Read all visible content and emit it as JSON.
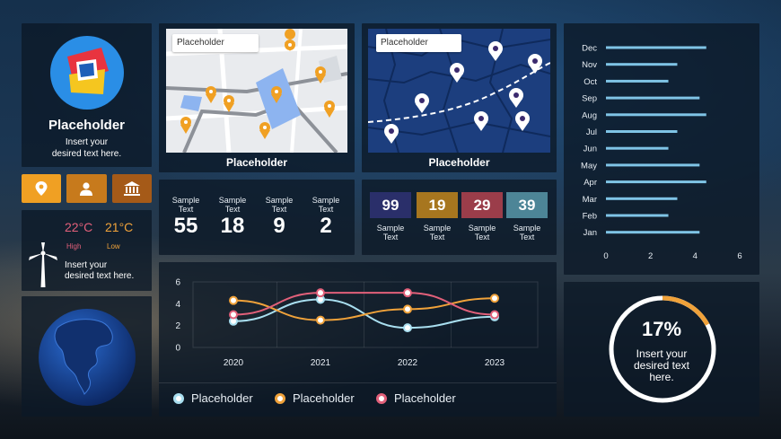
{
  "profile": {
    "title": "Placeholder",
    "subtitle_line1": "Insert your",
    "subtitle_line2": "desired text here."
  },
  "weather": {
    "high_temp": "22°C",
    "high_label": "High",
    "low_temp": "21°C",
    "low_label": "Low",
    "text_line1": "Insert your",
    "text_line2": "desired text here."
  },
  "map_light": {
    "search_placeholder": "Placeholder",
    "caption": "Placeholder"
  },
  "map_dark": {
    "search_placeholder": "Placeholder",
    "caption": "Placeholder"
  },
  "stats_plain": [
    {
      "label_line1": "Sample",
      "label_line2": "Text",
      "value": "55"
    },
    {
      "label_line1": "Sample",
      "label_line2": "Text",
      "value": "18"
    },
    {
      "label_line1": "Sample",
      "label_line2": "Text",
      "value": "9"
    },
    {
      "label_line1": "Sample",
      "label_line2": "Text",
      "value": "2"
    }
  ],
  "stats_tiles": [
    {
      "value": "99",
      "label_line1": "Sample",
      "label_line2": "Text",
      "color": "#2a2f6a"
    },
    {
      "value": "19",
      "label_line1": "Sample",
      "label_line2": "Text",
      "color": "#a7761f"
    },
    {
      "value": "29",
      "label_line1": "Sample",
      "label_line2": "Text",
      "color": "#9b3d4a"
    },
    {
      "value": "39",
      "label_line1": "Sample",
      "label_line2": "Text",
      "color": "#4d8597"
    }
  ],
  "progress": {
    "percent_text": "17%",
    "percent_value": 17,
    "text_line1": "Insert your",
    "text_line2": "desired text",
    "text_line3": "here.",
    "ring_color": "#ffffff",
    "accent_color": "#f0a23a"
  },
  "chart_data": [
    {
      "type": "bar",
      "orientation": "horizontal",
      "categories": [
        "Dec",
        "Nov",
        "Oct",
        "Sep",
        "Aug",
        "Jul",
        "Jun",
        "May",
        "Apr",
        "Mar",
        "Feb",
        "Jan"
      ],
      "values": [
        4.5,
        3.2,
        2.8,
        4.2,
        4.5,
        3.2,
        2.8,
        4.2,
        4.5,
        3.2,
        2.8,
        4.2
      ],
      "xlim": [
        0,
        6
      ],
      "xticks": [
        "0",
        "2",
        "4",
        "6"
      ],
      "bar_color": "#7fc4e6",
      "grid": false
    },
    {
      "type": "line",
      "x": [
        "2020",
        "2021",
        "2022",
        "2023"
      ],
      "ylim": [
        0,
        6
      ],
      "yticks": [
        "0",
        "2",
        "4",
        "6"
      ],
      "series": [
        {
          "name": "Placeholder",
          "values": [
            2.4,
            4.4,
            1.8,
            2.8
          ],
          "color": "#a9dff0"
        },
        {
          "name": "Placeholder",
          "values": [
            4.3,
            2.5,
            3.5,
            4.5
          ],
          "color": "#f0a23a"
        },
        {
          "name": "Placeholder",
          "values": [
            3.0,
            5.0,
            5.0,
            3.0
          ],
          "color": "#e2607a"
        }
      ],
      "legend_position": "bottom",
      "grid": true
    }
  ]
}
